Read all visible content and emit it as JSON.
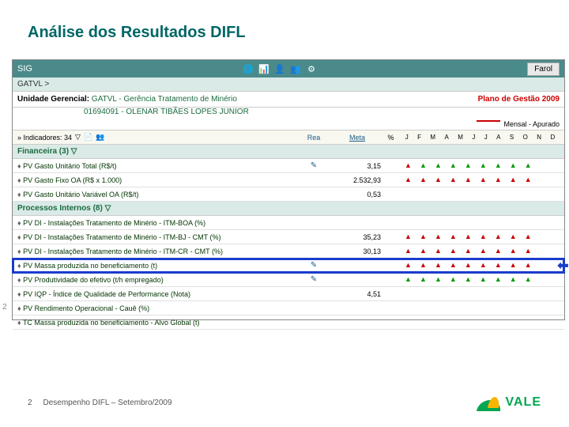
{
  "slide": {
    "title": "Análise dos Resultados DIFL",
    "footer_page": "2",
    "footer_text": "Desempenho DIFL – Setembro/2009",
    "logo_text": "VALE"
  },
  "window": {
    "app_title": "SIG",
    "farol_label": "Farol",
    "breadcrumb": "GATVL >",
    "unit_label": "Unidade Gerencial:",
    "unit_value": "GATVL - Gerência Tratamento de Minério",
    "unit_sub": "01694091 - OLENAR TIBÃES LOPES JUNIOR",
    "plan_label": "Plano de Gestão 2009",
    "legend_label": "Mensal - Apurado",
    "columns": {
      "indicadores": "» Indicadores: 34",
      "rea": "Rea",
      "meta": "Meta",
      "pct": "%",
      "months": [
        "J",
        "F",
        "M",
        "A",
        "M",
        "J",
        "J",
        "A",
        "S",
        "O",
        "N",
        "D"
      ]
    },
    "sections": [
      {
        "title": "Financeira (3) ▽",
        "rows": [
          {
            "name": "PV Gasto Unitário Total (R$/t)",
            "rea": "✎",
            "meta": "3,15",
            "markers": [
              "r",
              "g",
              "g",
              "g",
              "g",
              "g",
              "g",
              "g",
              "g",
              "",
              "",
              ""
            ]
          },
          {
            "name": "PV Gasto Fixo OA (R$ x 1.000)",
            "rea": "",
            "meta": "2.532,93",
            "markers": [
              "r",
              "r",
              "r",
              "r",
              "r",
              "r",
              "r",
              "r",
              "r",
              "",
              "",
              ""
            ]
          },
          {
            "name": "PV Gasto Unitário Variável OA (R$/t)",
            "rea": "",
            "meta": "0,53",
            "markers": [
              "",
              "",
              "",
              "",
              "",
              "",
              "",
              "",
              "",
              "",
              "",
              ""
            ]
          }
        ]
      },
      {
        "title": "Processos Internos (8) ▽",
        "rows": [
          {
            "name": "PV DI - Instalações Tratamento de Minério - ITM-BOA (%)",
            "rea": "",
            "meta": "",
            "markers": [
              "",
              "",
              "",
              "",
              "",
              "",
              "",
              "",
              "",
              "",
              "",
              ""
            ]
          },
          {
            "name": "PV DI - Instalações Tratamento de Minério - ITM-BJ - CMT (%)",
            "rea": "",
            "meta": "35,23",
            "markers": [
              "r",
              "r",
              "r",
              "r",
              "r",
              "r",
              "r",
              "r",
              "r",
              "",
              "",
              ""
            ]
          },
          {
            "name": "PV DI - Instalações Tratamento de Minério - ITM-CR - CMT (%)",
            "rea": "",
            "meta": "30,13",
            "markers": [
              "r",
              "r",
              "r",
              "r",
              "r",
              "r",
              "r",
              "r",
              "r",
              "",
              "",
              ""
            ]
          },
          {
            "name": "PV Massa produzida no beneficiamento (t)",
            "rea": "✎",
            "meta": "",
            "markers": [
              "r",
              "r",
              "r",
              "r",
              "r",
              "r",
              "r",
              "r",
              "r",
              "",
              "",
              ""
            ],
            "highlight": true
          },
          {
            "name": "PV Produtividade do efetivo (t/h empregado)",
            "rea": "✎",
            "meta": "",
            "markers": [
              "g",
              "g",
              "g",
              "g",
              "g",
              "g",
              "g",
              "g",
              "g",
              "",
              "",
              ""
            ]
          },
          {
            "name": "PV IQP - Índice de Qualidade de Performance (Nota)",
            "rea": "",
            "meta": "4,51",
            "markers": [
              "",
              "",
              "",
              "",
              "",
              "",
              "",
              "",
              "",
              "",
              "",
              ""
            ]
          },
          {
            "name": "PV Rendimento Operacional - Cauê (%)",
            "rea": "",
            "meta": "",
            "markers": [
              "",
              "",
              "",
              "",
              "",
              "",
              "",
              "",
              "",
              "",
              "",
              ""
            ]
          },
          {
            "name": "TC Massa produzida no beneficiamento - Alvo Global (t)",
            "rea": "",
            "meta": "",
            "markers": [
              "",
              "",
              "",
              "",
              "",
              "",
              "",
              "",
              "",
              "",
              "",
              ""
            ]
          }
        ]
      }
    ]
  },
  "colors": {
    "brand_teal": "#4a8a8a",
    "section_bg": "#d9eae7",
    "title_color": "#006666",
    "red": "#cc0000",
    "green": "#009900",
    "highlight_blue": "#1a3ccc",
    "vale_green": "#00a651",
    "vale_yellow": "#f7b500"
  }
}
